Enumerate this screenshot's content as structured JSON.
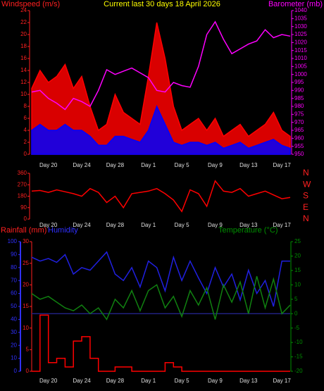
{
  "chart_data": [
    {
      "type": "line",
      "title": "Current last 30 days 18 April 2026",
      "ylabel": "Windspeed (m/s)",
      "y2label": "Barometer (mb)",
      "ycolor": "#ff2020",
      "y2color": "#ff00ff",
      "titlecolor": "#ffff00",
      "categories": [
        null,
        null,
        "Day 20",
        null,
        null,
        null,
        "Day 24",
        null,
        null,
        null,
        "Day 28",
        null,
        null,
        null,
        "Day 1",
        null,
        null,
        null,
        "Day 5",
        null,
        null,
        null,
        "Day 9",
        null,
        null,
        null,
        "Day 13",
        null,
        null,
        null,
        "Day 17",
        null
      ],
      "ylim": [
        0,
        24
      ],
      "yticks": [
        0,
        2,
        4,
        6,
        8,
        10,
        12,
        14,
        16,
        18,
        20,
        22,
        24
      ],
      "y2lim": [
        950,
        1040
      ],
      "y2ticks": [
        950,
        955,
        960,
        965,
        970,
        975,
        980,
        985,
        990,
        995,
        1000,
        1005,
        1010,
        1015,
        1020,
        1025,
        1030,
        1035,
        1040
      ],
      "series": [
        {
          "color": "#ff0000",
          "fill": true,
          "axis": "y",
          "values": [
            11,
            14,
            12,
            13,
            15,
            11,
            13,
            8,
            4,
            5,
            10,
            7,
            6,
            5,
            13,
            22,
            16,
            8,
            4,
            5,
            6,
            4,
            6,
            3,
            4,
            5,
            3,
            4,
            5,
            7,
            4,
            3
          ]
        },
        {
          "color": "#0000ff",
          "fill": true,
          "axis": "y",
          "values": [
            4,
            5,
            4,
            4,
            5,
            4,
            4,
            3,
            1.5,
            1.5,
            3,
            3,
            2.5,
            2,
            4,
            8,
            5,
            2,
            1.5,
            2,
            2,
            1.5,
            2,
            1,
            1.5,
            2,
            1,
            1.5,
            2,
            2.5,
            1.5,
            1
          ]
        },
        {
          "color": "#ff00ff",
          "axis": "y2",
          "values": [
            989,
            990,
            985,
            982,
            978,
            985,
            983,
            980,
            990,
            1003,
            1000,
            1002,
            1004,
            1001,
            998,
            990,
            989,
            995,
            993,
            992,
            1005,
            1025,
            1033,
            1022,
            1013,
            1016,
            1019,
            1021,
            1028,
            1023,
            1025,
            1024
          ]
        }
      ]
    },
    {
      "type": "line",
      "ycolor": "#ff2020",
      "y2color": "#ff2020",
      "categories": [
        null,
        null,
        "Day 20",
        null,
        null,
        null,
        "Day 24",
        null,
        null,
        null,
        "Day 28",
        null,
        null,
        null,
        "Day 1",
        null,
        null,
        null,
        "Day 5",
        null,
        null,
        null,
        "Day 9",
        null,
        null,
        null,
        "Day 13",
        null,
        null,
        null,
        "Day 17",
        null
      ],
      "ylim": [
        0,
        360
      ],
      "yticks": [
        0,
        90,
        180,
        270,
        360
      ],
      "y2lim": [
        0,
        360
      ],
      "y2ticks": [
        {
          "value": 0,
          "label": "N"
        },
        {
          "value": 90,
          "label": "E"
        },
        {
          "value": 180,
          "label": "S"
        },
        {
          "value": 270,
          "label": "W"
        },
        {
          "value": 360,
          "label": "N"
        }
      ],
      "series": [
        {
          "color": "#ff0000",
          "axis": "y",
          "values": [
            220,
            225,
            210,
            230,
            215,
            200,
            180,
            240,
            210,
            130,
            180,
            90,
            200,
            210,
            220,
            240,
            200,
            150,
            60,
            230,
            200,
            100,
            300,
            220,
            210,
            240,
            180,
            200,
            220,
            190,
            160,
            170
          ]
        }
      ]
    },
    {
      "type": "line",
      "ylabel": "Humidity",
      "y2label": "Temperature (°C)",
      "y3label": "Rainfall (mm)",
      "ycolor": "#3030ff",
      "y2color": "#009000",
      "y3color": "#ff2020",
      "categories": [
        null,
        null,
        "Day 20",
        null,
        null,
        null,
        "Day 24",
        null,
        null,
        null,
        "Day 28",
        null,
        null,
        null,
        "Day 1",
        null,
        null,
        null,
        "Day 5",
        null,
        null,
        null,
        "Day 9",
        null,
        null,
        null,
        "Day 13",
        null,
        null,
        null,
        "Day 17",
        null
      ],
      "ylim": [
        0,
        100
      ],
      "yticks": [
        0,
        10,
        20,
        30,
        40,
        50,
        60,
        70,
        80,
        90,
        100
      ],
      "y2lim": [
        -20,
        25
      ],
      "y2ticks": [
        -20,
        -15,
        -10,
        -5,
        0,
        5,
        10,
        15,
        20,
        25
      ],
      "y3lim": [
        0,
        30
      ],
      "y3ticks": [
        0,
        5,
        10,
        15,
        20,
        25,
        30
      ],
      "reference_line": {
        "value": 0,
        "axis": "y2",
        "color": "#202080"
      },
      "series": [
        {
          "color": "#2020e0",
          "axis": "y",
          "values": [
            88,
            85,
            87,
            84,
            90,
            75,
            80,
            78,
            85,
            92,
            75,
            70,
            80,
            65,
            85,
            80,
            62,
            88,
            70,
            85,
            72,
            60,
            80,
            65,
            75,
            55,
            78,
            60,
            70,
            50,
            85,
            85
          ]
        },
        {
          "color": "#108010",
          "axis": "y2",
          "values": [
            7,
            5,
            6,
            4,
            2,
            1,
            3,
            0,
            2,
            -2,
            5,
            2,
            8,
            1,
            8,
            10,
            2,
            6,
            -1,
            8,
            3,
            9,
            -2,
            10,
            4,
            11,
            0,
            13,
            2,
            12,
            0,
            3
          ]
        },
        {
          "color": "#ff0000",
          "axis": "y3",
          "step": true,
          "values": [
            0,
            13,
            2,
            3,
            1,
            7,
            8,
            3,
            0,
            0,
            1,
            1,
            0,
            0,
            0,
            0,
            2,
            1,
            0,
            0,
            0,
            0,
            0,
            0,
            0,
            0,
            0,
            0,
            0,
            0,
            0,
            0
          ]
        }
      ]
    }
  ]
}
